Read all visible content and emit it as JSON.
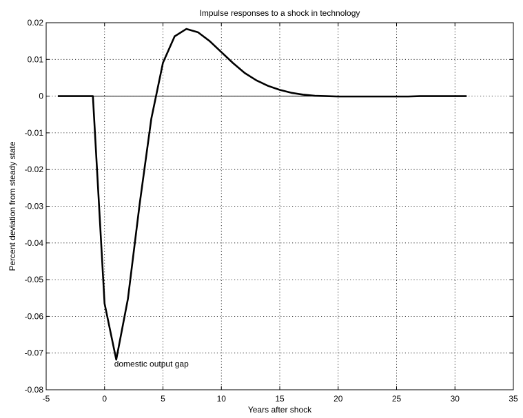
{
  "chart_data": {
    "type": "line",
    "title": "Impulse responses to a shock in technology",
    "xlabel": "Years after shock",
    "ylabel": "Percent deviation from steady state",
    "xlim": [
      -5,
      35
    ],
    "ylim": [
      -0.08,
      0.02
    ],
    "xticks": [
      -5,
      0,
      5,
      10,
      15,
      20,
      25,
      30,
      35
    ],
    "yticks": [
      0.02,
      0.01,
      0,
      -0.01,
      -0.02,
      -0.03,
      -0.04,
      -0.05,
      -0.06,
      -0.07,
      -0.08
    ],
    "xtick_labels": [
      "-5",
      "0",
      "5",
      "10",
      "15",
      "20",
      "25",
      "30",
      "35"
    ],
    "ytick_labels": [
      "0.02",
      "0.01",
      "0",
      "-0.01",
      "-0.02",
      "-0.03",
      "-0.04",
      "-0.05",
      "-0.06",
      "-0.07",
      "-0.08"
    ],
    "grid": true,
    "zero_line": true,
    "series": [
      {
        "x": [
          -4,
          -3,
          -2,
          -1,
          0,
          1,
          2,
          3,
          4,
          5,
          6,
          7,
          8,
          9,
          10,
          11,
          12,
          13,
          14,
          15,
          16,
          17,
          18,
          19,
          20,
          21,
          22,
          23,
          24,
          25,
          26,
          27,
          28,
          29,
          30,
          31
        ],
        "values": [
          0,
          0,
          0,
          0,
          -0.0565,
          -0.0718,
          -0.0552,
          -0.0295,
          -0.0062,
          0.0091,
          0.0163,
          0.0183,
          0.0174,
          0.015,
          0.012,
          0.009,
          0.0063,
          0.0043,
          0.0028,
          0.0017,
          0.0009,
          0.0004,
          0.0001,
          0.0,
          -0.0001,
          -0.0001,
          -0.0001,
          -0.0001,
          -0.0001,
          -0.0001,
          -0.0001,
          0,
          0,
          0,
          0,
          0
        ],
        "color": "#000000"
      }
    ],
    "annotations": [
      {
        "text": "domestic output gap",
        "x": 1,
        "y": -0.0718
      }
    ]
  }
}
